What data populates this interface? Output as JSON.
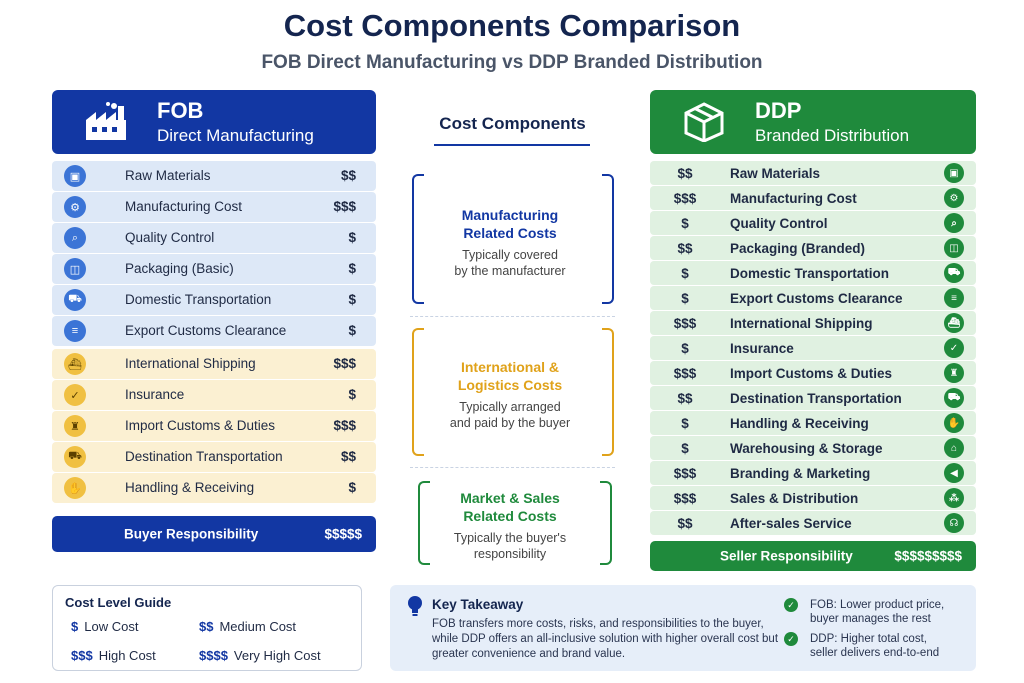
{
  "title": "Cost Components Comparison",
  "subtitle": "FOB Direct Manufacturing vs DDP Branded Distribution",
  "fob": {
    "name": "FOB",
    "desc": "Direct Manufacturing",
    "icon": "factory-icon",
    "rows": [
      {
        "label": "Raw Materials",
        "cost": "$$",
        "icon": "cube-icon",
        "glyph": "▣",
        "group": "blue"
      },
      {
        "label": "Manufacturing Cost",
        "cost": "$$$",
        "icon": "gears-icon",
        "glyph": "⚙",
        "group": "blue"
      },
      {
        "label": "Quality Control",
        "cost": "$",
        "icon": "magnifier-icon",
        "glyph": "⌕",
        "group": "blue"
      },
      {
        "label": "Packaging (Basic)",
        "cost": "$",
        "icon": "box-icon",
        "glyph": "◫",
        "group": "blue"
      },
      {
        "label": "Domestic Transportation",
        "cost": "$",
        "icon": "truck-icon",
        "glyph": "⛟",
        "group": "blue"
      },
      {
        "label": "Export Customs Clearance",
        "cost": "$",
        "icon": "document-icon",
        "glyph": "≡",
        "group": "blue"
      },
      {
        "label": "International Shipping",
        "cost": "$$$",
        "icon": "ship-icon",
        "glyph": "⛴",
        "group": "yellow"
      },
      {
        "label": "Insurance",
        "cost": "$",
        "icon": "shield-icon",
        "glyph": "✓",
        "group": "yellow"
      },
      {
        "label": "Import Customs & Duties",
        "cost": "$$$",
        "icon": "customs-officer-icon",
        "glyph": "♜",
        "group": "yellow"
      },
      {
        "label": "Destination Transportation",
        "cost": "$$",
        "icon": "truck-icon",
        "glyph": "⛟",
        "group": "yellow"
      },
      {
        "label": "Handling & Receiving",
        "cost": "$",
        "icon": "hand-box-icon",
        "glyph": "✋",
        "group": "yellow"
      }
    ],
    "responsibility": {
      "label": "Buyer Responsibility",
      "cost": "$$$$$"
    }
  },
  "ddp": {
    "name": "DDP",
    "desc": "Branded Distribution",
    "icon": "package-icon",
    "rows": [
      {
        "label": "Raw Materials",
        "cost": "$$",
        "icon": "cube-icon",
        "glyph": "▣"
      },
      {
        "label": "Manufacturing Cost",
        "cost": "$$$",
        "icon": "gears-icon",
        "glyph": "⚙"
      },
      {
        "label": "Quality Control",
        "cost": "$",
        "icon": "magnifier-icon",
        "glyph": "⌕"
      },
      {
        "label": "Packaging (Branded)",
        "cost": "$$",
        "icon": "gift-box-icon",
        "glyph": "◫"
      },
      {
        "label": "Domestic Transportation",
        "cost": "$",
        "icon": "truck-icon",
        "glyph": "⛟"
      },
      {
        "label": "Export Customs Clearance",
        "cost": "$",
        "icon": "document-icon",
        "glyph": "≡"
      },
      {
        "label": "International Shipping",
        "cost": "$$$",
        "icon": "ship-icon",
        "glyph": "⛴"
      },
      {
        "label": "Insurance",
        "cost": "$",
        "icon": "shield-icon",
        "glyph": "✓"
      },
      {
        "label": "Import Customs & Duties",
        "cost": "$$$",
        "icon": "customs-officer-icon",
        "glyph": "♜"
      },
      {
        "label": "Destination Transportation",
        "cost": "$$",
        "icon": "truck-icon",
        "glyph": "⛟"
      },
      {
        "label": "Handling & Receiving",
        "cost": "$",
        "icon": "hand-box-icon",
        "glyph": "✋"
      },
      {
        "label": "Warehousing & Storage",
        "cost": "$",
        "icon": "warehouse-icon",
        "glyph": "⌂"
      },
      {
        "label": "Branding & Marketing",
        "cost": "$$$",
        "icon": "megaphone-icon",
        "glyph": "◀"
      },
      {
        "label": "Sales & Distribution",
        "cost": "$$$",
        "icon": "network-icon",
        "glyph": "⁂"
      },
      {
        "label": "After-sales Service",
        "cost": "$$",
        "icon": "headset-icon",
        "glyph": "☊"
      }
    ],
    "responsibility": {
      "label": "Seller Responsibility",
      "cost": "$$$$$$$$$"
    }
  },
  "middle": {
    "title": "Cost Components",
    "groups": [
      {
        "title1": "Manufacturing",
        "title2": "Related Costs",
        "desc1": "Typically covered",
        "desc2": "by the manufacturer",
        "color": "#1237a3"
      },
      {
        "title1": "International &",
        "title2": "Logistics Costs",
        "desc1": "Typically arranged",
        "desc2": "and paid by the buyer",
        "color": "#e0a21a"
      },
      {
        "title1": "Market & Sales",
        "title2": "Related Costs",
        "desc1": "Typically the buyer's",
        "desc2": "responsibility",
        "color": "#1f8a3c"
      }
    ]
  },
  "guide": {
    "title": "Cost Level Guide",
    "items": [
      {
        "sym": "$",
        "label": "Low Cost"
      },
      {
        "sym": "$$",
        "label": "Medium Cost"
      },
      {
        "sym": "$$$",
        "label": "High Cost"
      },
      {
        "sym": "$$$$",
        "label": "Very High Cost"
      }
    ]
  },
  "takeaway": {
    "title": "Key Takeaway",
    "icon": "lightbulb-icon",
    "body": "FOB transfers more costs, risks, and responsibilities to the buyer, while DDP offers an all-inclusive solution with higher overall cost but greater convenience and brand value.",
    "points": [
      {
        "line1": "FOB: Lower product price,",
        "line2": "buyer manages the rest"
      },
      {
        "line1": "DDP: Higher total cost,",
        "line2": "seller delivers end-to-end"
      }
    ]
  },
  "colors": {
    "fob_blue": "#1237a3",
    "ddp_green": "#1f8a3c",
    "logistics_gold": "#e0a21a"
  }
}
